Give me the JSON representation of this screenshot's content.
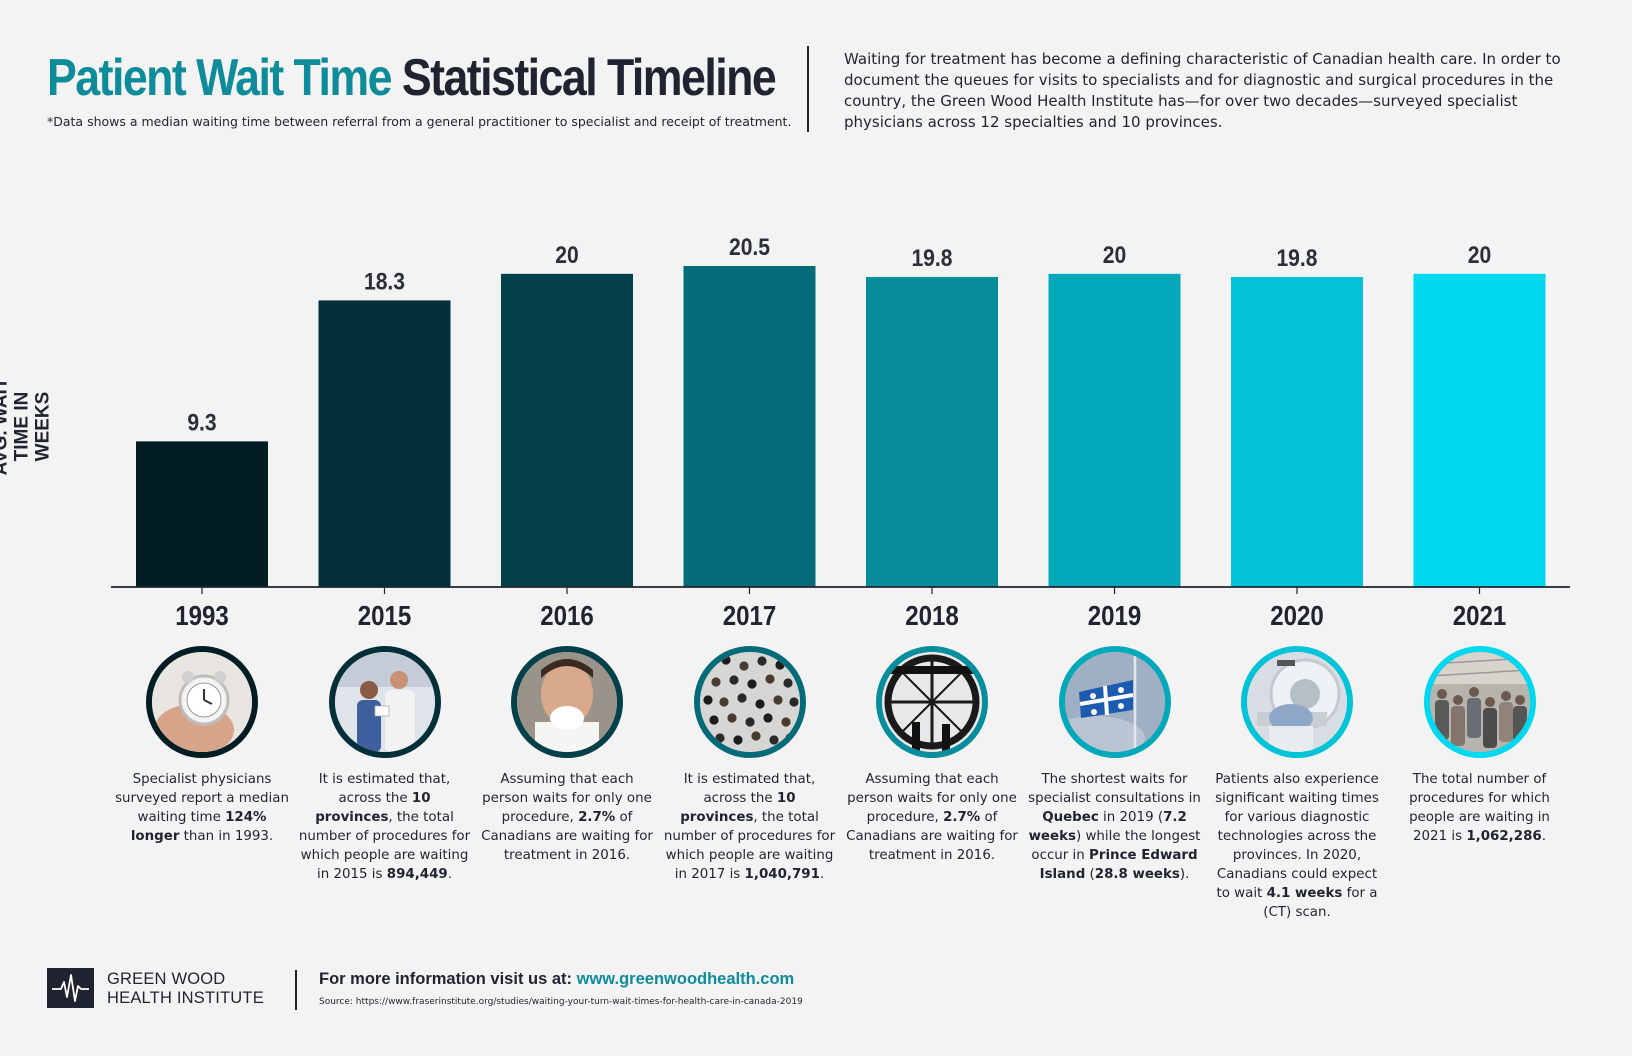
{
  "header": {
    "title_accent": "Patient Wait Time",
    "title_dark": "Statistical Timeline",
    "note": "*Data shows a median waiting time between referral from a general practitioner to specialist and receipt of treatment.",
    "intro": "Waiting for treatment has become a defining characteristic of Canadian health care. In order to document the queues for visits to specialists and for diagnostic and surgical procedures in the country, the Green Wood Health Institute has—for over two decades—surveyed specialist physicians across 12 specialties and 10 provinces."
  },
  "chart_data": {
    "type": "bar",
    "categories": [
      "1993",
      "2015",
      "2016",
      "2017",
      "2018",
      "2019",
      "2020",
      "2021"
    ],
    "values": [
      9.3,
      18.3,
      20,
      20.5,
      19.8,
      20,
      19.8,
      20
    ],
    "value_labels": [
      "9.3",
      "18.3",
      "20",
      "20.5",
      "19.8",
      "20",
      "19.8",
      "20"
    ],
    "ylabel": "AVG. WAIT TIME IN WEEKS",
    "ylim": [
      0,
      20.5
    ],
    "grid": false,
    "colors": [
      "#021e24",
      "#032f38",
      "#04404a",
      "#066b78",
      "#078d9b",
      "#04a8bb",
      "#03c3d9",
      "#00d8ef"
    ]
  },
  "timeline": [
    {
      "year": "1993",
      "photo": "alarm-clock",
      "ring": "#021e24",
      "desc": [
        [
          "Specialist physicians surveyed report a median waiting time ",
          false
        ],
        [
          "124% longer",
          true
        ],
        [
          " than in 1993.",
          false
        ]
      ]
    },
    {
      "year": "2015",
      "photo": "doctors",
      "ring": "#032f38",
      "desc": [
        [
          "It is estimated that, across the ",
          false
        ],
        [
          "10 provinces",
          true
        ],
        [
          ", the total number of procedures for which people are waiting in 2015 is ",
          false
        ],
        [
          "894,449",
          true
        ],
        [
          ".",
          false
        ]
      ]
    },
    {
      "year": "2016",
      "photo": "sick-person",
      "ring": "#04404a",
      "desc": [
        [
          "Assuming that each person waits for only one procedure, ",
          false
        ],
        [
          "2.7%",
          true
        ],
        [
          " of Canadians are waiting for treatment in 2016.",
          false
        ]
      ]
    },
    {
      "year": "2017",
      "photo": "crowd",
      "ring": "#066b78",
      "desc": [
        [
          "It is estimated that, across the ",
          false
        ],
        [
          "10 provinces",
          true
        ],
        [
          ", the total number of procedures for which people are waiting in 2017 is ",
          false
        ],
        [
          "1,040,791",
          true
        ],
        [
          ".",
          false
        ]
      ]
    },
    {
      "year": "2018",
      "photo": "clock-window",
      "ring": "#078d9b",
      "desc": [
        [
          "Assuming that each person waits for only one procedure, ",
          false
        ],
        [
          "2.7%",
          true
        ],
        [
          " of Canadians are waiting for treatment in 2016.",
          false
        ]
      ]
    },
    {
      "year": "2019",
      "photo": "quebec-flag",
      "ring": "#04a8bb",
      "desc": [
        [
          "The shortest waits for specialist consultations in ",
          false
        ],
        [
          "Quebec",
          true
        ],
        [
          " in 2019 (",
          false
        ],
        [
          "7.2 weeks",
          true
        ],
        [
          ") while the longest occur in ",
          false
        ],
        [
          "Prince Edward Island",
          true
        ],
        [
          " (",
          false
        ],
        [
          "28.8 weeks",
          true
        ],
        [
          ").",
          false
        ]
      ]
    },
    {
      "year": "2020",
      "photo": "ct-scanner",
      "ring": "#03c3d9",
      "desc": [
        [
          "Patients also experience significant waiting times for various diagnostic technologies across the provinces. In 2020, Canadians could expect to wait ",
          false
        ],
        [
          "4.1 weeks",
          true
        ],
        [
          " for a (CT) scan.",
          false
        ]
      ]
    },
    {
      "year": "2021",
      "photo": "busy-station",
      "ring": "#00d8ef",
      "desc": [
        [
          "The total number of procedures for which people are waiting in 2021 is ",
          false
        ],
        [
          "1,062,286",
          true
        ],
        [
          ".",
          false
        ]
      ]
    }
  ],
  "footer": {
    "logo_line1": "GREEN WOOD",
    "logo_line2": "HEALTH INSTITUTE",
    "logo_icon": "heartbeat-icon",
    "more_label": "For more information visit us at: ",
    "more_url": "www.greenwoodhealth.com",
    "source": "Source: https://www.fraserinstitute.org/studies/waiting-your-turn-wait-times-for-health-care-in-canada-2019"
  }
}
